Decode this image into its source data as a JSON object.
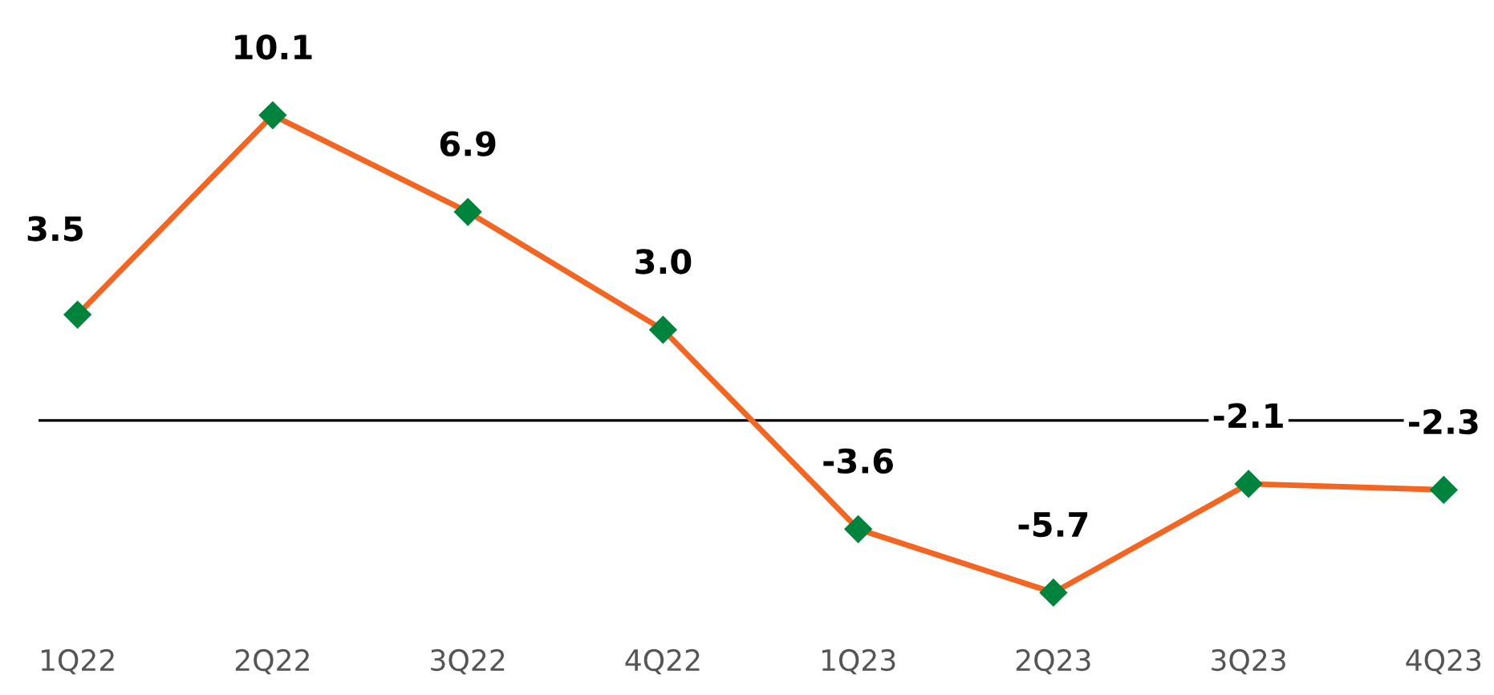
{
  "chart_data": {
    "type": "line",
    "categories": [
      "1Q22",
      "2Q22",
      "3Q22",
      "4Q22",
      "1Q23",
      "2Q23",
      "3Q23",
      "4Q23"
    ],
    "series": [
      {
        "color": "#f26522",
        "colors": [
          "#00843d",
          "#00843d",
          "#00843d",
          "#00843d",
          "#00843d",
          "#00843d",
          "#00843d",
          "#00843d"
        ],
        "values": [
          3.5,
          10.1,
          6.9,
          3.0,
          -3.6,
          -5.7,
          -2.1,
          -2.3
        ],
        "value_labels": [
          "3.5",
          "10.1",
          "6.9",
          "3.0",
          "-3.6",
          "-5.7",
          "-2.1",
          "-2.3"
        ]
      }
    ],
    "marker": "diamond",
    "line_style": "solid",
    "grid": false,
    "legend": false,
    "ref_lines": [
      {
        "axis": "y",
        "value": 0,
        "color": "#000000"
      }
    ]
  }
}
